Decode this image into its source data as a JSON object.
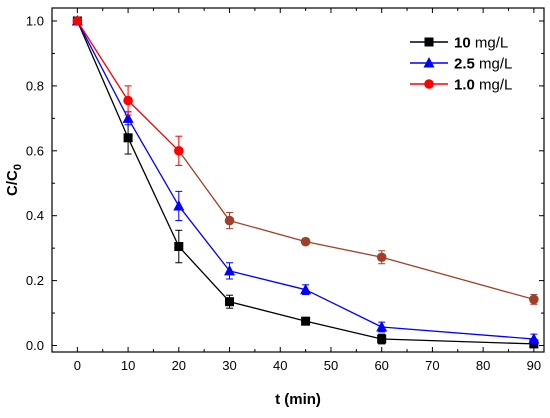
{
  "chart_data": {
    "type": "line",
    "xlabel": "t (min)",
    "ylabel": "C/C0",
    "ylabel_main": "C/C",
    "ylabel_sub": "0",
    "xlim": [
      -5,
      92
    ],
    "ylim": [
      -0.02,
      1.04
    ],
    "x_ticks": [
      0,
      10,
      20,
      30,
      40,
      50,
      60,
      70,
      80,
      90
    ],
    "y_ticks": [
      0.0,
      0.2,
      0.4,
      0.6,
      0.8,
      1.0
    ],
    "x_tick_labels": [
      "0",
      "10",
      "20",
      "30",
      "40",
      "50",
      "60",
      "70",
      "80",
      "90"
    ],
    "y_tick_labels": [
      "0.0",
      "0.2",
      "0.4",
      "0.6",
      "0.8",
      "1.0"
    ],
    "grid": false,
    "legend_position": "top-right",
    "x": [
      0,
      10,
      20,
      30,
      45,
      60,
      90
    ],
    "series": [
      {
        "name": "10 mg/L",
        "legend_value": "10",
        "legend_unit": " mg/L",
        "color": "#000000",
        "marker": "square",
        "values": [
          1.0,
          0.64,
          0.305,
          0.135,
          0.075,
          0.02,
          0.005
        ],
        "errors": [
          0.0,
          0.05,
          0.05,
          0.02,
          0.005,
          0.015,
          0.01
        ]
      },
      {
        "name": "2.5 mg/L",
        "legend_value": "2.5",
        "legend_unit": " mg/L",
        "color": "#0000ff",
        "marker": "triangle",
        "values": [
          1.0,
          0.7,
          0.43,
          0.23,
          0.172,
          0.057,
          0.02
        ],
        "errors": [
          0.0,
          0.02,
          0.045,
          0.025,
          0.015,
          0.015,
          0.015
        ]
      },
      {
        "name": "1.0 mg/L",
        "legend_value": "1.0",
        "legend_unit": " mg/L",
        "color": "#ff0000",
        "late_color": "#a0402a",
        "marker": "circle",
        "values": [
          1.0,
          0.755,
          0.6,
          0.385,
          0.32,
          0.272,
          0.142
        ],
        "errors": [
          0.0,
          0.045,
          0.045,
          0.025,
          0.01,
          0.02,
          0.015
        ]
      }
    ]
  }
}
